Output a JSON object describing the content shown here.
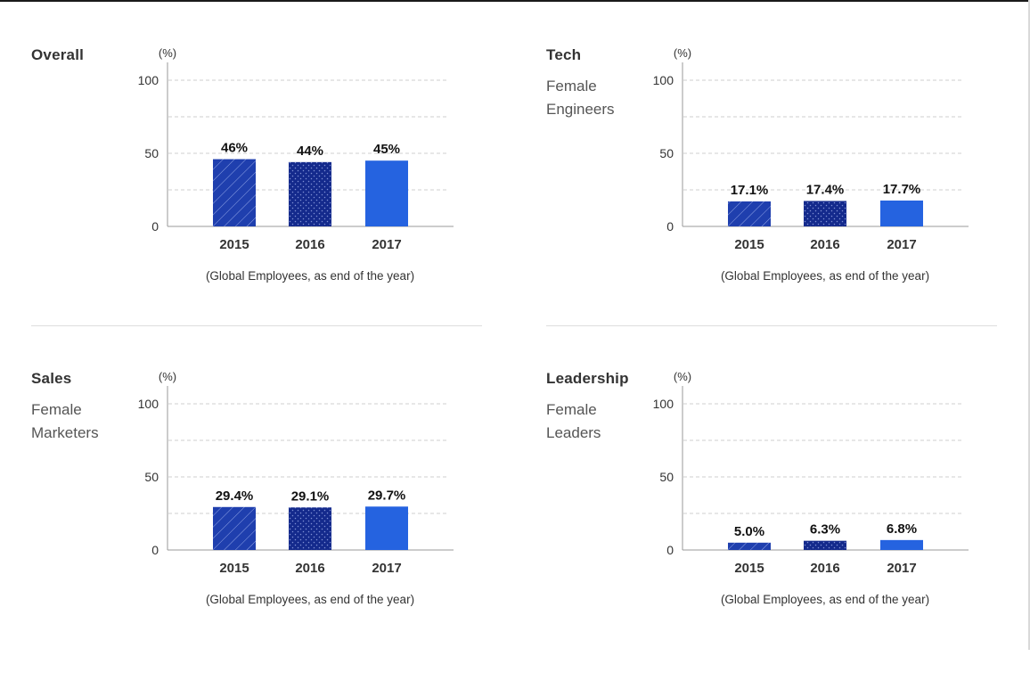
{
  "chart_data": [
    {
      "type": "bar",
      "title": "Overall",
      "subtitle": "",
      "unit": "(%)",
      "ylim": [
        0,
        100
      ],
      "yticks": [
        "0",
        "50",
        "100"
      ],
      "categories": [
        "2015",
        "2016",
        "2017"
      ],
      "values": [
        46,
        44,
        45
      ],
      "value_labels": [
        "46%",
        "44%",
        "45%"
      ],
      "note": "(Global Employees, as end of the year)",
      "grid": true
    },
    {
      "type": "bar",
      "title": "Tech",
      "subtitle": "Female Engineers",
      "unit": "(%)",
      "ylim": [
        0,
        100
      ],
      "yticks": [
        "0",
        "50",
        "100"
      ],
      "categories": [
        "2015",
        "2016",
        "2017"
      ],
      "values": [
        17.1,
        17.4,
        17.7
      ],
      "value_labels": [
        "17.1%",
        "17.4%",
        "17.7%"
      ],
      "note": "(Global Employees, as end of the year)",
      "grid": true
    },
    {
      "type": "bar",
      "title": "Sales",
      "subtitle": "Female Marketers",
      "unit": "(%)",
      "ylim": [
        0,
        100
      ],
      "yticks": [
        "0",
        "50",
        "100"
      ],
      "categories": [
        "2015",
        "2016",
        "2017"
      ],
      "values": [
        29.4,
        29.1,
        29.7
      ],
      "value_labels": [
        "29.4%",
        "29.1%",
        "29.7%"
      ],
      "note": "(Global Employees, as end of the year)",
      "grid": true
    },
    {
      "type": "bar",
      "title": "Leadership",
      "subtitle": "Female Leaders",
      "unit": "(%)",
      "ylim": [
        0,
        100
      ],
      "yticks": [
        "0",
        "50",
        "100"
      ],
      "categories": [
        "2015",
        "2016",
        "2017"
      ],
      "values": [
        5.0,
        6.3,
        6.8
      ],
      "value_labels": [
        "5.0%",
        "6.3%",
        "6.8%"
      ],
      "note": "(Global Employees, as end of the year)",
      "grid": true
    }
  ],
  "colors": {
    "bar_2015": "#1f3fae",
    "bar_2016": "#142a8c",
    "bar_2017": "#2563e0",
    "axis": "#999999",
    "grid": "#cfcfcf"
  },
  "bar_fills": [
    "diagonal-hatch",
    "dotted",
    "solid"
  ]
}
